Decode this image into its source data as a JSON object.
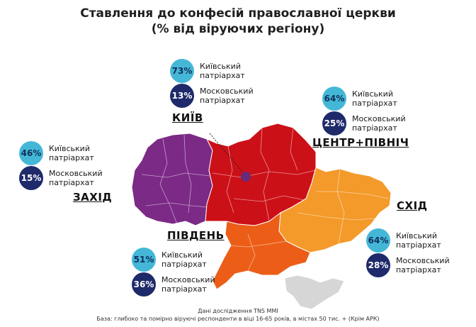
{
  "title": {
    "line1": "Ставлення до конфесій православної церкви",
    "line2": "(% від віруючих регіону)"
  },
  "legend_labels": {
    "kp_line1": "Київський",
    "kp_line2": "патріархат",
    "mp_line1": "Московський",
    "mp_line2": "патріархат"
  },
  "regions": {
    "kyiv": {
      "name": "КИЇВ",
      "kp": "73%",
      "mp": "13%"
    },
    "center": {
      "name": "ЦЕНТР+ПІВНІЧ",
      "kp": "64%",
      "mp": "25%"
    },
    "west": {
      "name": "ЗАХІД",
      "kp": "46%",
      "mp": "15%"
    },
    "south": {
      "name": "ПІВДЕНЬ",
      "kp": "51%",
      "mp": "36%"
    },
    "east": {
      "name": "СХІД",
      "kp": "64%",
      "mp": "28%"
    }
  },
  "colors": {
    "west": "#7b2a86",
    "center": "#cc1018",
    "south": "#ec5e17",
    "east": "#f49a2a",
    "crimea": "#d6d6d6",
    "kyiv_marker": "#6a2a7a",
    "kp_circle": "#44b7d7",
    "mp_circle": "#1f2a6b"
  },
  "footer": {
    "line1": "Дані дослідження TNS MMI",
    "line2": "База: глибоко та помірно віруючі респонденти в віці 16-65 років, в містах 50 тис. + (Крім АРК)"
  }
}
